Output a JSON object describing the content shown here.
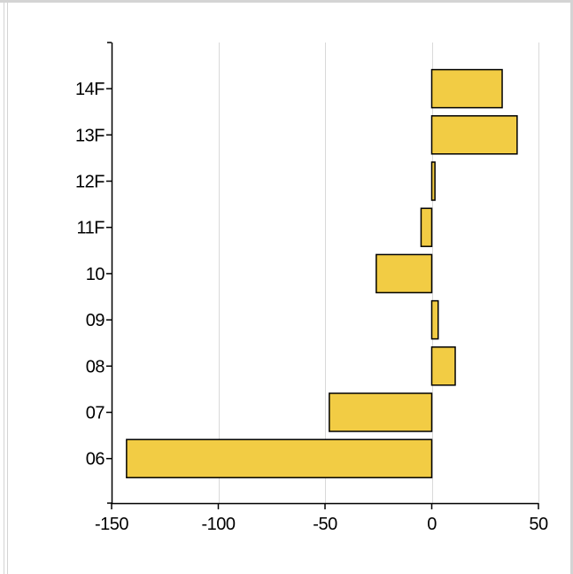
{
  "chart_data": {
    "type": "bar",
    "orientation": "horizontal",
    "categories": [
      "06",
      "07",
      "08",
      "09",
      "10",
      "11F",
      "12F",
      "13F",
      "14F"
    ],
    "values": [
      -143,
      -48,
      11,
      3,
      -26,
      -5,
      1.5,
      40,
      33
    ],
    "title": "",
    "xlabel": "",
    "ylabel": "",
    "xlim": [
      -150,
      50
    ],
    "xticks": [
      -150,
      -100,
      -50,
      0,
      50
    ],
    "xtick_labels": [
      "-150",
      "-100",
      "-50",
      "0",
      "50"
    ],
    "grid": "vertical",
    "legend": "none",
    "bar_color": "#f2cc44",
    "bar_edge_color": "#000000",
    "grid_color": "#d9d9d9"
  }
}
